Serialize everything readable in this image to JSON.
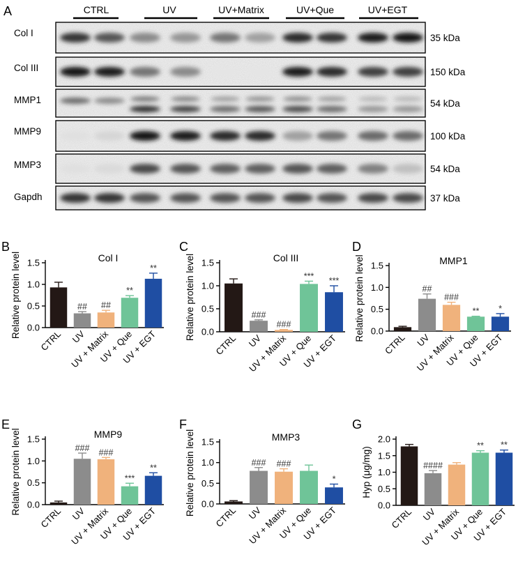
{
  "panel_letters": [
    "A",
    "B",
    "C",
    "D",
    "E",
    "F",
    "G"
  ],
  "blot": {
    "groups": [
      "CTRL",
      "UV",
      "UV+Matrix",
      "UV+Que",
      "UV+EGT"
    ],
    "rows": [
      {
        "label": "Col I",
        "kda": "35 kDa",
        "intensity": [
          0.85,
          0.7,
          0.45,
          0.4,
          0.55,
          0.35,
          0.9,
          0.85,
          0.95,
          1.0
        ]
      },
      {
        "label": "Col III",
        "kda": "150 kDa",
        "intensity": [
          1.0,
          0.95,
          0.55,
          0.45,
          0.03,
          0.03,
          0.95,
          0.9,
          0.8,
          0.8
        ]
      },
      {
        "label": "MMP1",
        "kda": "54 kDa",
        "intensity": [
          0.6,
          0.45,
          0.9,
          0.8,
          0.6,
          0.7,
          0.75,
          0.6,
          0.4,
          0.4
        ]
      },
      {
        "label": "MMP9",
        "kda": "100 kDa",
        "intensity": [
          0.05,
          0.1,
          1.0,
          0.95,
          0.9,
          0.9,
          0.35,
          0.55,
          0.6,
          0.6
        ]
      },
      {
        "label": "MMP3",
        "kda": "54 kDa",
        "intensity": [
          0.05,
          0.08,
          0.75,
          0.7,
          0.65,
          0.65,
          0.7,
          0.65,
          0.5,
          0.2
        ]
      },
      {
        "label": "Gapdh",
        "kda": "37 kDa",
        "intensity": [
          0.85,
          0.85,
          0.7,
          0.7,
          0.7,
          0.7,
          0.75,
          0.7,
          0.75,
          0.75
        ]
      }
    ]
  },
  "colors": [
    "#231815",
    "#8c8c8c",
    "#f0b27c",
    "#6fc498",
    "#1f4ea3"
  ],
  "chart_data": [
    {
      "type": "bar",
      "letter": "B",
      "title": "Col I",
      "ylabel": "Relative protein level",
      "ylim": [
        0,
        1.5
      ],
      "yticks": [
        "0.0",
        "0.5",
        "1.0",
        "1.5"
      ],
      "categories": [
        "CTRL",
        "UV",
        "UV + Matrix",
        "UV + Que",
        "UV + EGT"
      ],
      "values": [
        0.93,
        0.33,
        0.35,
        0.69,
        1.13
      ],
      "errors": [
        0.12,
        0.04,
        0.05,
        0.05,
        0.13
      ],
      "annotations": [
        "",
        "##",
        "##",
        "**",
        "**"
      ]
    },
    {
      "type": "bar",
      "letter": "C",
      "title": "Col III",
      "ylabel": "Relative protein level",
      "ylim": [
        0,
        1.5
      ],
      "yticks": [
        "0.0",
        "0.5",
        "1.0",
        "1.5"
      ],
      "categories": [
        "CTRL",
        "UV",
        "UV + Matrix",
        "UV + Que",
        "UV + EGT"
      ],
      "values": [
        1.05,
        0.24,
        0.04,
        1.04,
        0.86
      ],
      "errors": [
        0.1,
        0.02,
        0.01,
        0.06,
        0.14
      ],
      "annotations": [
        "",
        "###",
        "###",
        "***",
        "***"
      ]
    },
    {
      "type": "bar",
      "letter": "D",
      "title": "MMP1",
      "ylabel": "Relative protein level",
      "ylim": [
        0,
        1.5
      ],
      "yticks": [
        "0.0",
        "0.5",
        "1.0",
        "1.5"
      ],
      "categories": [
        "CTRL",
        "UV",
        "UV + Matrix",
        "UV + Que",
        "UV + EGT"
      ],
      "values": [
        0.09,
        0.74,
        0.6,
        0.33,
        0.33
      ],
      "errors": [
        0.02,
        0.11,
        0.06,
        0.01,
        0.07
      ],
      "annotations": [
        "",
        "##",
        "###",
        "**",
        "*"
      ]
    },
    {
      "type": "bar",
      "letter": "E",
      "title": "MMP9",
      "ylabel": "Relative protein level",
      "ylim": [
        0,
        1.5
      ],
      "yticks": [
        "0.0",
        "0.5",
        "1.0",
        "1.5"
      ],
      "categories": [
        "CTRL",
        "UV",
        "UV + Matrix",
        "UV + Que",
        "UV + EGT"
      ],
      "values": [
        0.05,
        1.05,
        1.04,
        0.42,
        0.66
      ],
      "errors": [
        0.03,
        0.13,
        0.04,
        0.07,
        0.07
      ],
      "annotations": [
        "",
        "###",
        "###",
        "***",
        "**"
      ]
    },
    {
      "type": "bar",
      "letter": "F",
      "title": "MMP3",
      "ylabel": "Relative protein level",
      "ylim": [
        0,
        1.5
      ],
      "yticks": [
        "0.0",
        "0.5",
        "1.0",
        "1.5"
      ],
      "categories": [
        "CTRL",
        "UV",
        "UV + Matrix",
        "UV + Que",
        "UV + EGT"
      ],
      "values": [
        0.06,
        0.8,
        0.78,
        0.8,
        0.4
      ],
      "errors": [
        0.02,
        0.08,
        0.07,
        0.14,
        0.08
      ],
      "annotations": [
        "",
        "###",
        "###",
        "",
        "*"
      ]
    },
    {
      "type": "bar",
      "letter": "G",
      "title": "",
      "ylabel": "Hyp (μg/mg)",
      "ylim": [
        0,
        2.0
      ],
      "yticks": [
        "0.0",
        "0.5",
        "1.0",
        "1.5",
        "2.0"
      ],
      "categories": [
        "CTRL",
        "UV",
        "UV + Matrix",
        "UV + Que",
        "UV + EGT"
      ],
      "values": [
        1.78,
        0.97,
        1.23,
        1.59,
        1.59
      ],
      "errors": [
        0.06,
        0.08,
        0.06,
        0.06,
        0.08
      ],
      "annotations": [
        "",
        "####",
        "",
        "**",
        "**"
      ]
    }
  ]
}
